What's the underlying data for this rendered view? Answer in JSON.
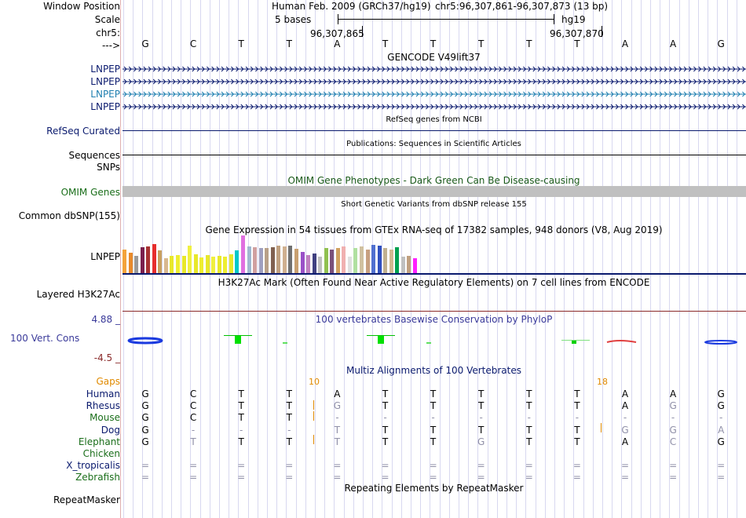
{
  "header": {
    "window_position_label": "Window Position",
    "scale_label": "Scale",
    "chrom_label": "chr5:",
    "strand_label": "--->",
    "assembly_text": "Human Feb. 2009 (GRCh37/hg19)",
    "position_text": "chr5:96,307,861-96,307,873 (13 bp)",
    "scale_text": "5 bases",
    "scale_db": "hg19",
    "coord_left": "96,307,865",
    "coord_right": "96,307,870"
  },
  "bases": [
    "G",
    "C",
    "T",
    "T",
    "A",
    "T",
    "T",
    "T",
    "T",
    "T",
    "A",
    "A",
    "G"
  ],
  "tracks": {
    "gencode_title": "GENCODE V49lift37",
    "gencode_items": [
      {
        "label": "LNPEP",
        "color": "#0a1a6e"
      },
      {
        "label": "LNPEP",
        "color": "#0a1a6e"
      },
      {
        "label": "LNPEP",
        "color": "#1f7fb0"
      },
      {
        "label": "LNPEP",
        "color": "#0a1a6e"
      }
    ],
    "refseq_title": "RefSeq genes from NCBI",
    "refseq_label": "RefSeq Curated",
    "publications_title": "Publications: Sequences in Scientific Articles",
    "sequences_label": "Sequences",
    "snps_label": "SNPs",
    "omim_title": "OMIM Gene Phenotypes - Dark Green Can Be Disease-causing",
    "omim_label": "OMIM Genes",
    "dbsnp_title": "Short Genetic Variants from dbSNP release 155",
    "dbsnp_label": "Common dbSNP(155)",
    "gtex_title": "Gene Expression in 54 tissues from GTEx RNA-seq of 17382 samples, 948 donors (V8, Aug 2019)",
    "gtex_label": "LNPEP",
    "h3k27_title": "H3K27Ac Mark (Often Found Near Active Regulatory Elements) on 7 cell lines from ENCODE",
    "h3k27_label": "Layered H3K27Ac",
    "cons_title": "100 vertebrates Basewise Conservation by PhyloP",
    "cons_max": "4.88 _",
    "cons_label": "100 Vert. Cons",
    "cons_min": "-4.5 _",
    "multiz_title": "Multiz Alignments of 100 Vertebrates",
    "gaps_label": "Gaps",
    "gap_marks": [
      "10",
      "18"
    ],
    "repeat_title": "Repeating Elements by RepeatMasker",
    "repeat_label": "RepeatMasker"
  },
  "gtex_values": [
    {
      "c": "#f3a33b",
      "v": 0.62
    },
    {
      "c": "#e88a2b",
      "v": 0.55
    },
    {
      "c": "#9a9a9a",
      "v": 0.45
    },
    {
      "c": "#7a1f4d",
      "v": 0.68
    },
    {
      "c": "#a83232",
      "v": 0.7
    },
    {
      "c": "#e62d2d",
      "v": 0.78
    },
    {
      "c": "#c8a060",
      "v": 0.6
    },
    {
      "c": "#d8b890",
      "v": 0.4
    },
    {
      "c": "#e8e82a",
      "v": 0.45
    },
    {
      "c": "#eeee30",
      "v": 0.48
    },
    {
      "c": "#e8e82a",
      "v": 0.46
    },
    {
      "c": "#f0f040",
      "v": 0.72
    },
    {
      "c": "#e8e82a",
      "v": 0.5
    },
    {
      "c": "#eeee30",
      "v": 0.42
    },
    {
      "c": "#e8e82a",
      "v": 0.48
    },
    {
      "c": "#f0f040",
      "v": 0.44
    },
    {
      "c": "#e8e82a",
      "v": 0.46
    },
    {
      "c": "#eeee30",
      "v": 0.44
    },
    {
      "c": "#e8e82a",
      "v": 0.5
    },
    {
      "c": "#00c8c8",
      "v": 0.6
    },
    {
      "c": "#e070e0",
      "v": 1.0
    },
    {
      "c": "#a0b8d0",
      "v": 0.7
    },
    {
      "c": "#d0a0a0",
      "v": 0.68
    },
    {
      "c": "#a0a0c0",
      "v": 0.66
    },
    {
      "c": "#b8a088",
      "v": 0.66
    },
    {
      "c": "#806050",
      "v": 0.68
    },
    {
      "c": "#c0a080",
      "v": 0.72
    },
    {
      "c": "#d0b090",
      "v": 0.7
    },
    {
      "c": "#707070",
      "v": 0.72
    },
    {
      "c": "#c8a070",
      "v": 0.64
    },
    {
      "c": "#9a50c8",
      "v": 0.56
    },
    {
      "c": "#c080c0",
      "v": 0.48
    },
    {
      "c": "#404080",
      "v": 0.52
    },
    {
      "c": "#c0c0c0",
      "v": 0.44
    },
    {
      "c": "#90c050",
      "v": 0.66
    },
    {
      "c": "#7a4f7a",
      "v": 0.62
    },
    {
      "c": "#d0a060",
      "v": 0.66
    },
    {
      "c": "#f0b0b0",
      "v": 0.7
    },
    {
      "c": "#e0e0e0",
      "v": 0.44
    },
    {
      "c": "#b0e0a0",
      "v": 0.66
    },
    {
      "c": "#d0c0a0",
      "v": 0.7
    },
    {
      "c": "#c8a080",
      "v": 0.62
    },
    {
      "c": "#5070d0",
      "v": 0.74
    },
    {
      "c": "#3050c0",
      "v": 0.72
    },
    {
      "c": "#c0b090",
      "v": 0.66
    },
    {
      "c": "#d0b890",
      "v": 0.62
    },
    {
      "c": "#00a050",
      "v": 0.68
    },
    {
      "c": "#c0c0c0",
      "v": 0.44
    },
    {
      "c": "#c0a080",
      "v": 0.46
    },
    {
      "c": "#ff20ff",
      "v": 0.4
    }
  ],
  "species": [
    {
      "name": "Human",
      "color": "#0a1a6e",
      "seq": [
        "G",
        "C",
        "T",
        "T",
        "A",
        "T",
        "T",
        "T",
        "T",
        "T",
        "A",
        "A",
        "G"
      ],
      "dim": [
        0,
        0,
        0,
        0,
        0,
        0,
        0,
        0,
        0,
        0,
        0,
        0,
        0
      ]
    },
    {
      "name": "Rhesus",
      "color": "#0a1a6e",
      "seq": [
        "G",
        "C",
        "T",
        "T",
        "G",
        "T",
        "T",
        "T",
        "T",
        "T",
        "A",
        "G",
        "G"
      ],
      "dim": [
        0,
        0,
        0,
        0,
        1,
        0,
        0,
        0,
        0,
        0,
        0,
        1,
        0
      ]
    },
    {
      "name": "Mouse",
      "color": "#1a6e1a",
      "seq": [
        "G",
        "C",
        "T",
        "T",
        "-",
        "-",
        "-",
        "-",
        "-",
        "-",
        "-",
        "-",
        "-"
      ],
      "dim": [
        0,
        0,
        0,
        0,
        1,
        1,
        1,
        1,
        1,
        1,
        1,
        1,
        1
      ]
    },
    {
      "name": "Dog",
      "color": "#0a1a6e",
      "seq": [
        "G",
        "-",
        "-",
        "-",
        "T",
        "T",
        "T",
        "T",
        "T",
        "T",
        "G",
        "G",
        "A"
      ],
      "dim": [
        0,
        1,
        1,
        1,
        1,
        0,
        0,
        0,
        0,
        0,
        1,
        1,
        1
      ]
    },
    {
      "name": "Elephant",
      "color": "#1a6e1a",
      "seq": [
        "G",
        "T",
        "T",
        "T",
        "T",
        "T",
        "T",
        "G",
        "T",
        "T",
        "A",
        "C",
        "G"
      ],
      "dim": [
        0,
        1,
        0,
        0,
        1,
        0,
        0,
        1,
        0,
        0,
        0,
        1,
        0
      ]
    },
    {
      "name": "Chicken",
      "color": "#1a6e1a",
      "seq": [
        "",
        "",
        "",
        "",
        "",
        "",
        "",
        "",
        "",
        "",
        "",
        "",
        ""
      ],
      "dim": [
        0,
        0,
        0,
        0,
        0,
        0,
        0,
        0,
        0,
        0,
        0,
        0,
        0
      ]
    },
    {
      "name": "X_tropicalis",
      "color": "#0a1a6e",
      "seq": [
        "=",
        "=",
        "=",
        "=",
        "=",
        "=",
        "=",
        "=",
        "=",
        "=",
        "=",
        "=",
        "="
      ],
      "dim": [
        1,
        1,
        1,
        1,
        1,
        1,
        1,
        1,
        1,
        1,
        1,
        1,
        1
      ]
    },
    {
      "name": "Zebrafish",
      "color": "#1a6e1a",
      "seq": [
        "=",
        "=",
        "=",
        "=",
        "=",
        "=",
        "=",
        "=",
        "=",
        "=",
        "=",
        "=",
        "="
      ],
      "dim": [
        1,
        1,
        1,
        1,
        1,
        1,
        1,
        1,
        1,
        1,
        1,
        1,
        1
      ]
    }
  ]
}
